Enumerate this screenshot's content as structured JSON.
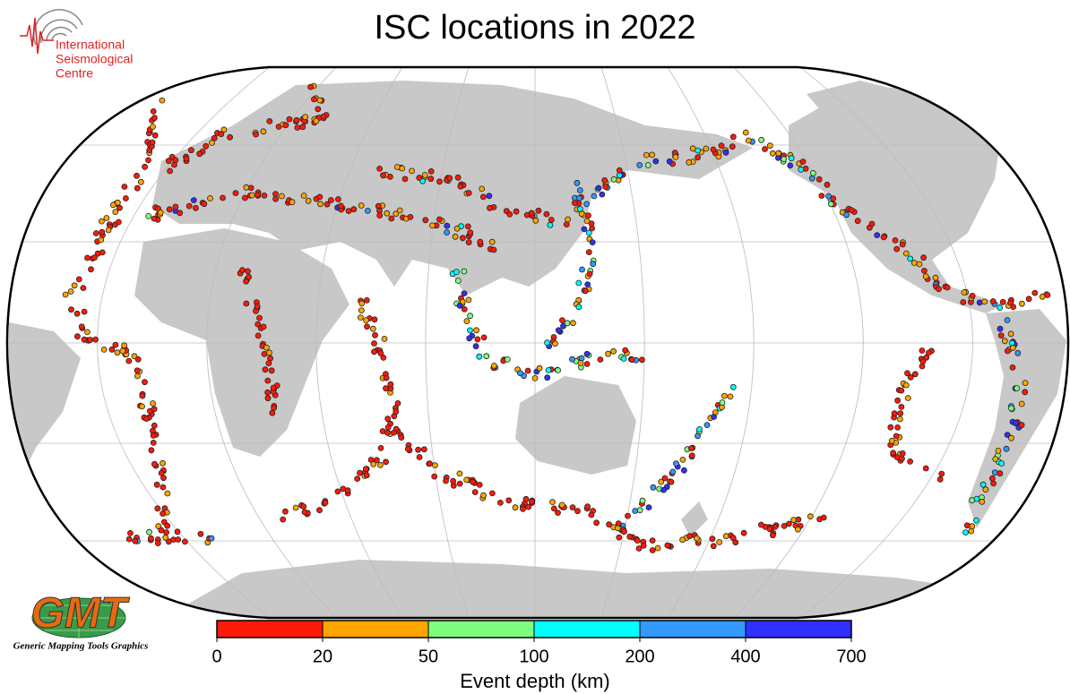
{
  "title": "ISC locations in 2022",
  "isc_logo": {
    "lines": [
      "International",
      "Seismological",
      "Centre"
    ]
  },
  "gmt_logo": {
    "letters": "GMT",
    "caption": "Generic Mapping Tools Graphics"
  },
  "colorbar": {
    "label": "Event depth (km)",
    "ticks": [
      0,
      20,
      50,
      100,
      200,
      400,
      700
    ],
    "colors": [
      "#ff1a0a",
      "#ffa500",
      "#7fff7f",
      "#00ffff",
      "#3399ff",
      "#3030ff"
    ]
  }
}
